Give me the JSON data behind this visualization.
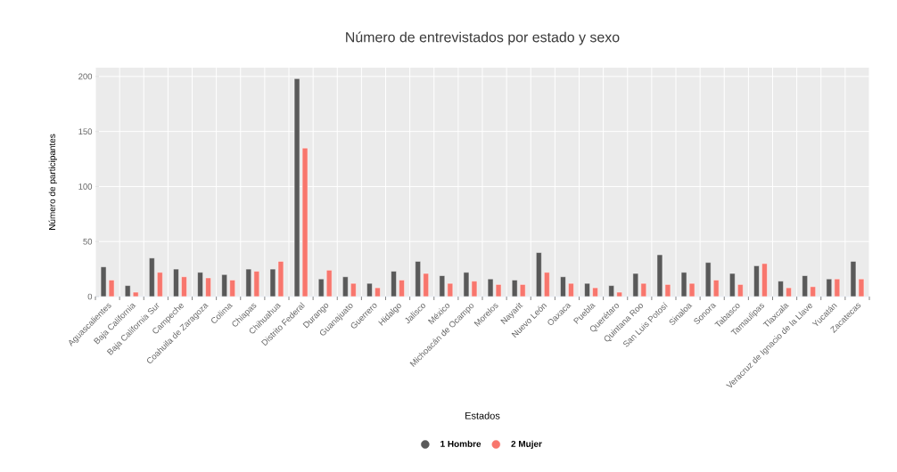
{
  "chart_data": {
    "type": "bar",
    "title": "Número de entrevistados por estado y sexo",
    "xlabel": "Estados",
    "ylabel": "Número de participantes",
    "categories": [
      "Aguascalientes",
      "Baja California",
      "Baja California Sur",
      "Campeche",
      "Coahuila de Zaragoza",
      "Colima",
      "Chiapas",
      "Chihuahua",
      "Distrito Federal",
      "Durango",
      "Guanajuato",
      "Guerrero",
      "Hidalgo",
      "Jalisco",
      "México",
      "Michoacán de Ocampo",
      "Morelos",
      "Nayarit",
      "Nuevo León",
      "Oaxaca",
      "Puebla",
      "Querétaro",
      "Quintana Roo",
      "San Luis Potosí",
      "Sinaloa",
      "Sonora",
      "Tabasco",
      "Tamaulipas",
      "Tlaxcala",
      "Veracruz de Ignacio de la Llave",
      "Yucatán",
      "Zacatecas"
    ],
    "series": [
      {
        "name": "1 Hombre",
        "color": "#595959",
        "values": [
          27,
          10,
          35,
          25,
          22,
          20,
          25,
          25,
          198,
          16,
          18,
          12,
          23,
          32,
          19,
          22,
          16,
          15,
          40,
          18,
          12,
          10,
          21,
          38,
          22,
          31,
          21,
          28,
          14,
          19,
          16,
          32
        ]
      },
      {
        "name": "2 Mujer",
        "color": "#f8766d",
        "values": [
          15,
          4,
          22,
          18,
          17,
          15,
          23,
          32,
          135,
          24,
          12,
          8,
          15,
          21,
          12,
          14,
          11,
          11,
          22,
          12,
          8,
          4,
          12,
          11,
          12,
          15,
          11,
          30,
          8,
          9,
          16,
          16
        ]
      }
    ],
    "ylim": [
      0,
      208
    ],
    "yticks": [
      0,
      50,
      100,
      150,
      200
    ],
    "grid": true,
    "legend": "bottom"
  }
}
